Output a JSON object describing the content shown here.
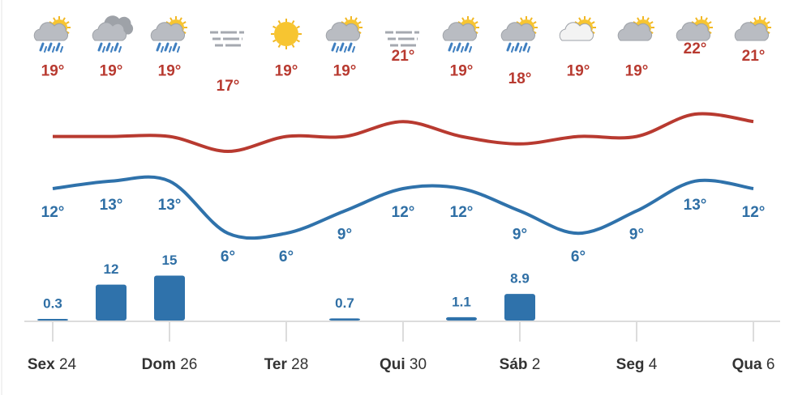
{
  "chart_data": {
    "type": "weather",
    "highs": {
      "color": "#b83a30",
      "values": [
        19,
        19,
        19,
        17,
        19,
        19,
        21,
        19,
        18,
        19,
        19,
        22,
        21
      ],
      "value_labels": [
        "19°",
        "19°",
        "19°",
        "17°",
        "19°",
        "19°",
        "21°",
        "19°",
        "18°",
        "19°",
        "19°",
        "22°",
        "21°"
      ]
    },
    "lows": {
      "color": "#2f72ab",
      "values": [
        12,
        13,
        13,
        6,
        6,
        9,
        12,
        12,
        9,
        6,
        9,
        13,
        12
      ],
      "value_labels": [
        "12°",
        "13°",
        "13°",
        "6°",
        "6°",
        "9°",
        "12°",
        "12°",
        "9°",
        "6°",
        "9°",
        "13°",
        "12°"
      ]
    },
    "precipitation": {
      "color": "#2f72ab",
      "values": [
        0.3,
        12,
        15,
        null,
        null,
        0.7,
        null,
        1.1,
        8.9,
        null,
        null,
        null,
        null
      ]
    },
    "x_labels": [
      {
        "day": "Sex",
        "date": "24"
      },
      null,
      {
        "day": "Dom",
        "date": "26"
      },
      null,
      {
        "day": "Ter",
        "date": "28"
      },
      null,
      {
        "day": "Qui",
        "date": "30"
      },
      null,
      {
        "day": "Sáb",
        "date": "2"
      },
      null,
      {
        "day": "Seg",
        "date": "4"
      },
      null,
      {
        "day": "Qua",
        "date": "6"
      }
    ]
  }
}
